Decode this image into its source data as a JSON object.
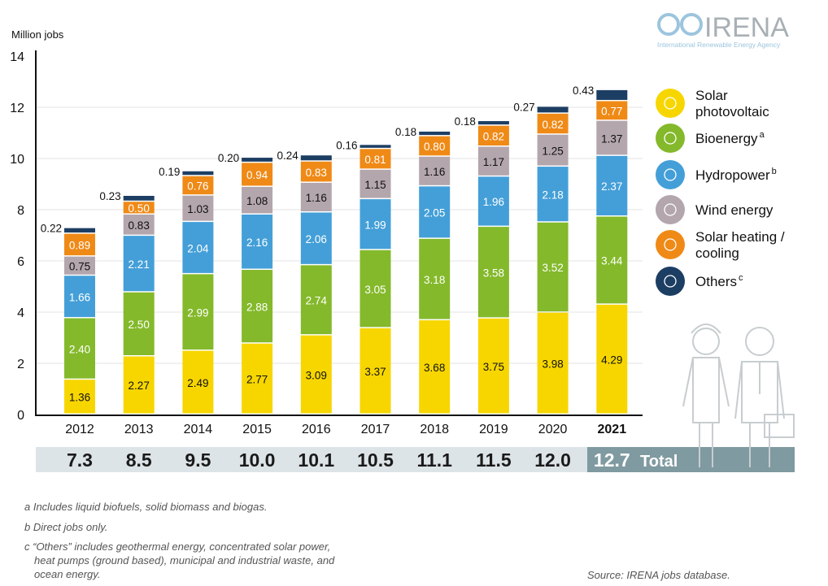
{
  "logo": {
    "name": "IRENA",
    "subtitle": "International Renewable Energy Agency"
  },
  "chart_data": {
    "type": "bar",
    "stacked": true,
    "ylabel": "Million jobs",
    "ylim": [
      0,
      14
    ],
    "yticks": [
      0,
      2,
      4,
      6,
      8,
      10,
      12
    ],
    "grid": true,
    "categories": [
      "2012",
      "2013",
      "2014",
      "2015",
      "2016",
      "2017",
      "2018",
      "2019",
      "2020",
      "2021"
    ],
    "series": [
      {
        "name": "Solar photovoltaic",
        "color": "#f7d600",
        "values": [
          1.36,
          2.27,
          2.49,
          2.77,
          3.09,
          3.37,
          3.68,
          3.75,
          3.98,
          4.29
        ]
      },
      {
        "name": "Bioenergy",
        "sup": "a",
        "color": "#84b92b",
        "values": [
          2.4,
          2.5,
          2.99,
          2.88,
          2.74,
          3.05,
          3.18,
          3.58,
          3.52,
          3.44
        ]
      },
      {
        "name": "Hydropower",
        "sup": "b",
        "color": "#449fd8",
        "values": [
          1.66,
          2.21,
          2.04,
          2.16,
          2.06,
          1.99,
          2.05,
          1.96,
          2.18,
          2.37
        ]
      },
      {
        "name": "Wind energy",
        "color": "#b3a6ad",
        "values": [
          0.75,
          0.83,
          1.03,
          1.08,
          1.16,
          1.15,
          1.16,
          1.17,
          1.25,
          1.37
        ]
      },
      {
        "name": "Solar heating / cooling",
        "color": "#ef8a17",
        "values": [
          0.89,
          0.5,
          0.76,
          0.94,
          0.83,
          0.81,
          0.8,
          0.82,
          0.82,
          0.77
        ]
      },
      {
        "name": "Others",
        "sup": "c",
        "color": "#1d3e63",
        "values": [
          0.22,
          0.23,
          0.19,
          0.2,
          0.24,
          0.16,
          0.18,
          0.18,
          0.27,
          0.43
        ]
      }
    ],
    "totals": [
      "7.3",
      "8.5",
      "9.5",
      "10.0",
      "10.1",
      "10.5",
      "11.1",
      "11.5",
      "12.0",
      "12.7"
    ],
    "totals_label": "Total",
    "legend_placement": "right"
  },
  "footnotes": [
    "a  Includes liquid biofuels, solid biomass and biogas.",
    "b  Direct jobs only.",
    "c  “Others” includes geothermal energy, concentrated solar power,",
    "heat pumps (ground based), municipal and industrial waste, and",
    "ocean energy."
  ],
  "source": "Source: IRENA jobs database."
}
